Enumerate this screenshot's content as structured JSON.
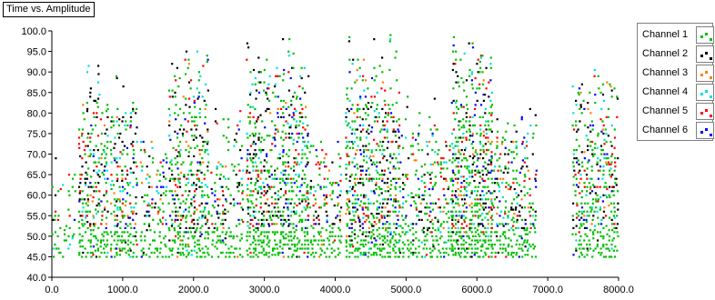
{
  "window": {
    "title": "Time vs. Amplitude"
  },
  "legend": {
    "position": "right"
  },
  "chart_data": {
    "type": "scatter",
    "title": "Time vs. Amplitude",
    "xlabel": "",
    "ylabel": "",
    "xlim": [
      0,
      8000
    ],
    "ylim": [
      40,
      100
    ],
    "x_ticks": [
      "0.0",
      "1000.0",
      "2000.0",
      "3000.0",
      "4000.0",
      "5000.0",
      "6000.0",
      "7000.0",
      "8000.0"
    ],
    "y_ticks": [
      "40.0",
      "45.0",
      "50.0",
      "55.0",
      "60.0",
      "65.0",
      "70.0",
      "75.0",
      "80.0",
      "85.0",
      "90.0",
      "95.0",
      "100.0"
    ],
    "grid": false,
    "y_step": 1,
    "clusters": [
      {
        "x_range": [
          0,
          330
        ],
        "max": 75,
        "density": 0.35
      },
      {
        "x_range": [
          380,
          780
        ],
        "max": 92,
        "density": 0.8
      },
      {
        "x_range": [
          830,
          1200
        ],
        "max": 90,
        "density": 0.85
      },
      {
        "x_range": [
          1250,
          1600
        ],
        "max": 80,
        "density": 0.55
      },
      {
        "x_range": [
          1650,
          2200
        ],
        "max": 98,
        "density": 0.85
      },
      {
        "x_range": [
          2250,
          2700
        ],
        "max": 84,
        "density": 0.6
      },
      {
        "x_range": [
          2750,
          3600
        ],
        "max": 100,
        "density": 0.85
      },
      {
        "x_range": [
          3600,
          4100
        ],
        "max": 80,
        "density": 0.6
      },
      {
        "x_range": [
          4150,
          4900
        ],
        "max": 100,
        "density": 0.85
      },
      {
        "x_range": [
          4900,
          5650
        ],
        "max": 85,
        "density": 0.65
      },
      {
        "x_range": [
          5650,
          6200
        ],
        "max": 100,
        "density": 0.95
      },
      {
        "x_range": [
          6200,
          6850
        ],
        "max": 85,
        "density": 0.7
      },
      {
        "x_range": [
          7350,
          8000
        ],
        "max": 95,
        "density": 0.75
      }
    ],
    "series": [
      {
        "name": "Channel 1",
        "color": "#00c000"
      },
      {
        "name": "Channel 2",
        "color": "#000000"
      },
      {
        "name": "Channel 3",
        "color": "#ff8000"
      },
      {
        "name": "Channel 4",
        "color": "#00e0e0"
      },
      {
        "name": "Channel 5",
        "color": "#ff0000"
      },
      {
        "name": "Channel 6",
        "color": "#0000ff"
      }
    ]
  }
}
